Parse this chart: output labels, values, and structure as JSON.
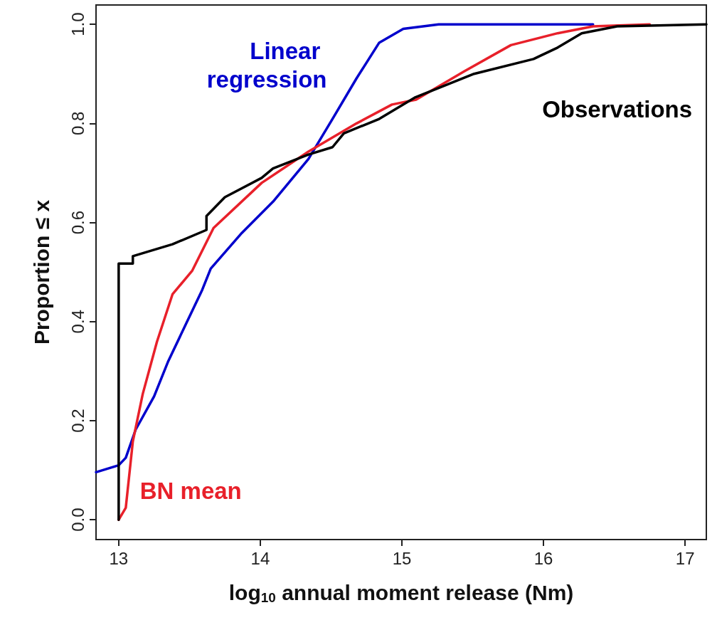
{
  "chart_data": {
    "type": "line",
    "xlabel": "log$_{10}$ annual moment release (Nm)",
    "ylabel": "Proportion ≤ x",
    "xlim": [
      12.84,
      17.15
    ],
    "ylim": [
      -0.04,
      1.039
    ],
    "xticks": [
      13,
      14,
      15,
      16,
      17
    ],
    "yticks": [
      {
        "value": 0,
        "label": "0.0"
      },
      0.2,
      0.4,
      0.6,
      0.8,
      {
        "value": 1,
        "label": "1.0"
      }
    ],
    "grid": false,
    "legend": false,
    "marker": "none",
    "line_style": "solid",
    "series": [
      {
        "name": "Linear regression",
        "color": "#0000cc",
        "x": [
          12.84,
          13.0,
          13.05,
          13.12,
          13.25,
          13.35,
          13.47,
          13.59,
          13.65,
          13.87,
          14.09,
          14.34,
          14.51,
          14.68,
          14.84,
          15.01,
          15.26,
          16.35
        ],
        "values": [
          0.096,
          0.11,
          0.125,
          0.182,
          0.249,
          0.32,
          0.392,
          0.464,
          0.507,
          0.579,
          0.642,
          0.728,
          0.809,
          0.891,
          0.963,
          0.991,
          1.0,
          1.0
        ]
      },
      {
        "name": "BN mean",
        "color": "#e8202a",
        "x": [
          13.0,
          13.05,
          13.1,
          13.17,
          13.27,
          13.38,
          13.52,
          13.67,
          14.01,
          14.34,
          14.68,
          14.93,
          15.1,
          15.44,
          15.77,
          16.1,
          16.35,
          16.75
        ],
        "values": [
          0,
          0.024,
          0.158,
          0.254,
          0.359,
          0.455,
          0.503,
          0.589,
          0.68,
          0.743,
          0.8,
          0.838,
          0.848,
          0.905,
          0.958,
          0.982,
          0.996,
          1.0
        ]
      },
      {
        "name": "Observations",
        "color": "#000000",
        "x": [
          13.0,
          13.0,
          13.1,
          13.1,
          13.38,
          13.62,
          13.62,
          13.75,
          14.01,
          14.09,
          14.34,
          14.51,
          14.59,
          14.84,
          15.09,
          15.51,
          15.93,
          16.1,
          16.27,
          16.52,
          17.15
        ],
        "values": [
          0,
          0.517,
          0.517,
          0.532,
          0.556,
          0.585,
          0.613,
          0.651,
          0.69,
          0.709,
          0.737,
          0.752,
          0.78,
          0.809,
          0.852,
          0.9,
          0.93,
          0.953,
          0.982,
          0.996,
          1.0
        ]
      }
    ]
  }
}
